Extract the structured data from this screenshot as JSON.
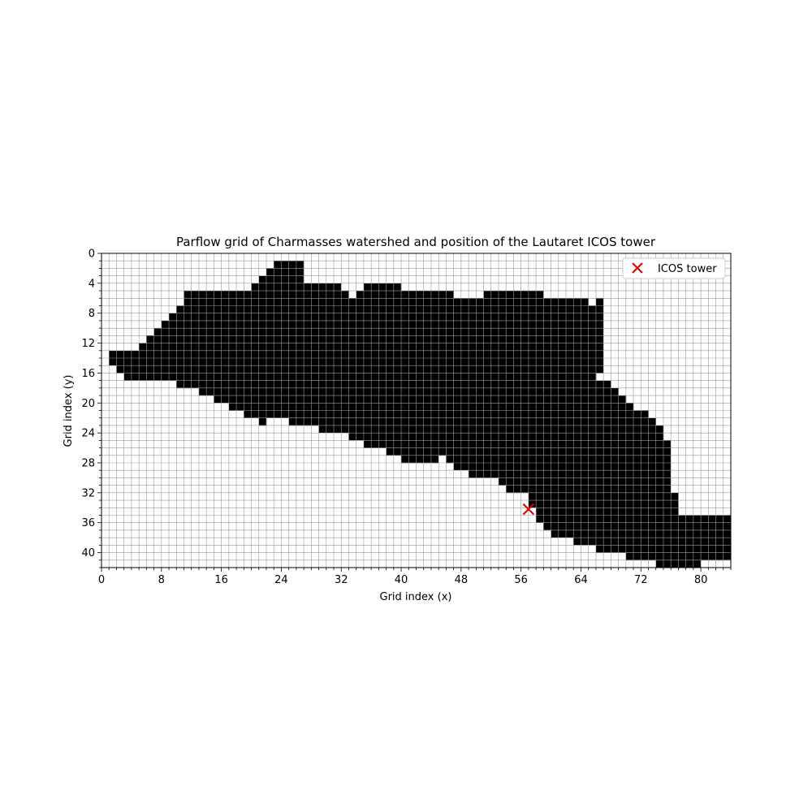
{
  "chart_data": {
    "type": "heatmap",
    "title": "Parflow grid of Charmasses watershed and position of the Lautaret ICOS tower",
    "xlabel": "Grid index (x)",
    "ylabel": "Grid index (y)",
    "xlim": [
      0,
      84
    ],
    "ylim": [
      42,
      0
    ],
    "y_axis_inverted": true,
    "grid": true,
    "grid_cols": 84,
    "grid_rows": 42,
    "x_ticks": [
      0,
      8,
      16,
      24,
      32,
      40,
      48,
      56,
      64,
      72,
      80
    ],
    "y_ticks": [
      0,
      4,
      8,
      12,
      16,
      20,
      24,
      28,
      32,
      36,
      40
    ],
    "colors": {
      "mask": "#000000",
      "background": "#ffffff",
      "grid": "#9a9a9a",
      "marker": "#dd0000"
    },
    "watershed_mask_rows": [
      [],
      [
        [
          23,
          26
        ]
      ],
      [
        [
          22,
          26
        ]
      ],
      [
        [
          21,
          26
        ]
      ],
      [
        [
          20,
          31
        ],
        [
          35,
          39
        ]
      ],
      [
        [
          11,
          32
        ],
        [
          34,
          40
        ],
        [
          41,
          46
        ],
        [
          51,
          58
        ]
      ],
      [
        [
          11,
          64
        ],
        [
          66,
          66
        ]
      ],
      [
        [
          10,
          66
        ]
      ],
      [
        [
          9,
          66
        ]
      ],
      [
        [
          8,
          66
        ]
      ],
      [
        [
          7,
          66
        ]
      ],
      [
        [
          6,
          66
        ]
      ],
      [
        [
          5,
          66
        ]
      ],
      [
        [
          1,
          66
        ]
      ],
      [
        [
          1,
          66
        ]
      ],
      [
        [
          2,
          66
        ]
      ],
      [
        [
          3,
          65
        ]
      ],
      [
        [
          10,
          67
        ]
      ],
      [
        [
          13,
          68
        ]
      ],
      [
        [
          15,
          69
        ]
      ],
      [
        [
          17,
          70
        ]
      ],
      [
        [
          19,
          72
        ]
      ],
      [
        [
          21,
          21
        ],
        [
          25,
          73
        ]
      ],
      [
        [
          29,
          74
        ]
      ],
      [
        [
          33,
          74
        ]
      ],
      [
        [
          35,
          75
        ]
      ],
      [
        [
          38,
          75
        ]
      ],
      [
        [
          40,
          44
        ],
        [
          46,
          75
        ]
      ],
      [
        [
          47,
          55
        ],
        [
          56,
          75
        ]
      ],
      [
        [
          49,
          55
        ],
        [
          56,
          75
        ]
      ],
      [
        [
          53,
          75
        ]
      ],
      [
        [
          54,
          75
        ]
      ],
      [
        [
          57,
          76
        ]
      ],
      [
        [
          57,
          76
        ]
      ],
      [
        [
          58,
          76
        ]
      ],
      [
        [
          58,
          83
        ]
      ],
      [
        [
          59,
          83
        ]
      ],
      [
        [
          60,
          83
        ]
      ],
      [
        [
          63,
          83
        ]
      ],
      [
        [
          66,
          83
        ]
      ],
      [
        [
          70,
          83
        ]
      ],
      [
        [
          74,
          79
        ]
      ]
    ],
    "series": [
      {
        "name": "ICOS tower",
        "type": "scatter",
        "marker": "x",
        "color": "#dd0000",
        "points": [
          [
            57,
            34.2
          ]
        ]
      }
    ],
    "legend": {
      "position": "top-right",
      "entries": [
        "ICOS tower"
      ]
    }
  }
}
